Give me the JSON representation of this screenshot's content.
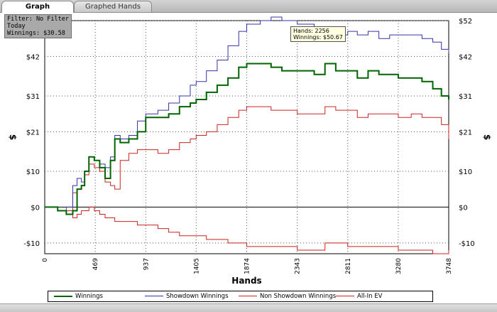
{
  "tabs": [
    {
      "label": "Graph",
      "active": true
    },
    {
      "label": "Graphed Hands",
      "active": false
    }
  ],
  "info": {
    "filter": "Filter: No Filter",
    "period": "Today",
    "winnings": "Winnings: $30.58"
  },
  "tooltip": {
    "hands": "Hands: 2256",
    "winnings": "Winnings: $50.67"
  },
  "chart_data": {
    "type": "line",
    "title": "",
    "xlabel": "Hands",
    "ylabel": "$",
    "xlim": [
      0,
      3748
    ],
    "ylim": [
      -13,
      52
    ],
    "x_ticks": [
      0,
      469,
      937,
      1405,
      1874,
      2343,
      2811,
      3280,
      3748
    ],
    "y_ticks": [
      {
        "value": -10,
        "label": "-$10"
      },
      {
        "value": 0,
        "label": "$0"
      },
      {
        "value": 10,
        "label": "$10"
      },
      {
        "value": 21,
        "label": "$21"
      },
      {
        "value": 31,
        "label": "$31"
      },
      {
        "value": 42,
        "label": "$42"
      },
      {
        "value": 52,
        "label": "$52"
      }
    ],
    "grid": true,
    "legend_position": "bottom",
    "series": [
      {
        "name": "Winnings",
        "color": "#006400",
        "points": [
          [
            0,
            0
          ],
          [
            120,
            -1
          ],
          [
            200,
            -2
          ],
          [
            260,
            -1
          ],
          [
            300,
            5
          ],
          [
            340,
            6
          ],
          [
            370,
            10
          ],
          [
            410,
            14
          ],
          [
            460,
            13
          ],
          [
            510,
            11
          ],
          [
            560,
            8
          ],
          [
            610,
            13
          ],
          [
            650,
            19
          ],
          [
            700,
            18
          ],
          [
            780,
            19
          ],
          [
            860,
            21
          ],
          [
            937,
            25
          ],
          [
            1050,
            25
          ],
          [
            1150,
            26
          ],
          [
            1250,
            28
          ],
          [
            1350,
            29
          ],
          [
            1405,
            30
          ],
          [
            1500,
            32
          ],
          [
            1600,
            34
          ],
          [
            1700,
            36
          ],
          [
            1800,
            39
          ],
          [
            1874,
            40
          ],
          [
            2000,
            40
          ],
          [
            2100,
            39
          ],
          [
            2200,
            38
          ],
          [
            2343,
            38
          ],
          [
            2500,
            37
          ],
          [
            2600,
            40
          ],
          [
            2700,
            38
          ],
          [
            2811,
            38
          ],
          [
            2900,
            36
          ],
          [
            3000,
            38
          ],
          [
            3100,
            37
          ],
          [
            3200,
            37
          ],
          [
            3280,
            36
          ],
          [
            3400,
            36
          ],
          [
            3500,
            35
          ],
          [
            3600,
            33
          ],
          [
            3680,
            31
          ],
          [
            3748,
            30
          ]
        ]
      },
      {
        "name": "Showdown Winnings",
        "color": "#3333aa",
        "points": [
          [
            0,
            0
          ],
          [
            120,
            -1
          ],
          [
            200,
            0
          ],
          [
            260,
            6
          ],
          [
            300,
            8
          ],
          [
            340,
            7
          ],
          [
            370,
            10
          ],
          [
            410,
            14
          ],
          [
            460,
            13
          ],
          [
            510,
            12
          ],
          [
            560,
            11
          ],
          [
            610,
            14
          ],
          [
            650,
            20
          ],
          [
            700,
            19
          ],
          [
            780,
            20
          ],
          [
            860,
            24
          ],
          [
            937,
            26
          ],
          [
            1050,
            27
          ],
          [
            1150,
            29
          ],
          [
            1250,
            31
          ],
          [
            1350,
            34
          ],
          [
            1405,
            35
          ],
          [
            1500,
            38
          ],
          [
            1600,
            41
          ],
          [
            1700,
            45
          ],
          [
            1800,
            49
          ],
          [
            1874,
            51
          ],
          [
            2000,
            52
          ],
          [
            2100,
            53
          ],
          [
            2200,
            52
          ],
          [
            2343,
            51
          ],
          [
            2500,
            49
          ],
          [
            2600,
            50
          ],
          [
            2700,
            48
          ],
          [
            2811,
            49
          ],
          [
            2900,
            48
          ],
          [
            3000,
            49
          ],
          [
            3100,
            47
          ],
          [
            3200,
            48
          ],
          [
            3280,
            48
          ],
          [
            3400,
            48
          ],
          [
            3500,
            47
          ],
          [
            3600,
            46
          ],
          [
            3680,
            44
          ],
          [
            3748,
            43
          ]
        ]
      },
      {
        "name": "Non Showdown Winnings",
        "color": "#cc2222",
        "points": [
          [
            0,
            0
          ],
          [
            120,
            -1
          ],
          [
            200,
            -2
          ],
          [
            260,
            -3
          ],
          [
            300,
            -2
          ],
          [
            340,
            -1
          ],
          [
            370,
            -1
          ],
          [
            410,
            0
          ],
          [
            460,
            -1
          ],
          [
            510,
            -2
          ],
          [
            560,
            -3
          ],
          [
            610,
            -3
          ],
          [
            650,
            -4
          ],
          [
            700,
            -4
          ],
          [
            780,
            -4
          ],
          [
            860,
            -5
          ],
          [
            937,
            -5
          ],
          [
            1050,
            -6
          ],
          [
            1150,
            -7
          ],
          [
            1250,
            -8
          ],
          [
            1350,
            -8
          ],
          [
            1405,
            -8
          ],
          [
            1500,
            -9
          ],
          [
            1600,
            -9
          ],
          [
            1700,
            -10
          ],
          [
            1800,
            -10
          ],
          [
            1874,
            -11
          ],
          [
            2000,
            -11
          ],
          [
            2100,
            -11
          ],
          [
            2200,
            -11
          ],
          [
            2343,
            -12
          ],
          [
            2500,
            -12
          ],
          [
            2600,
            -10
          ],
          [
            2700,
            -10
          ],
          [
            2811,
            -11
          ],
          [
            2900,
            -11
          ],
          [
            3000,
            -11
          ],
          [
            3100,
            -11
          ],
          [
            3200,
            -11
          ],
          [
            3280,
            -12
          ],
          [
            3400,
            -12
          ],
          [
            3500,
            -12
          ],
          [
            3600,
            -13
          ],
          [
            3680,
            -13
          ],
          [
            3748,
            -12
          ]
        ]
      },
      {
        "name": "All-In EV",
        "color": "#cc2222",
        "points": [
          [
            0,
            0
          ],
          [
            120,
            -1
          ],
          [
            200,
            -1
          ],
          [
            260,
            4
          ],
          [
            300,
            5
          ],
          [
            340,
            6
          ],
          [
            370,
            9
          ],
          [
            410,
            12
          ],
          [
            460,
            11
          ],
          [
            510,
            10
          ],
          [
            560,
            7
          ],
          [
            610,
            6
          ],
          [
            650,
            5
          ],
          [
            700,
            13
          ],
          [
            780,
            15
          ],
          [
            860,
            16
          ],
          [
            937,
            16
          ],
          [
            1050,
            15
          ],
          [
            1150,
            16
          ],
          [
            1250,
            18
          ],
          [
            1350,
            19
          ],
          [
            1405,
            20
          ],
          [
            1500,
            21
          ],
          [
            1600,
            23
          ],
          [
            1700,
            25
          ],
          [
            1800,
            27
          ],
          [
            1874,
            28
          ],
          [
            2000,
            28
          ],
          [
            2100,
            27
          ],
          [
            2200,
            27
          ],
          [
            2343,
            26
          ],
          [
            2500,
            26
          ],
          [
            2600,
            28
          ],
          [
            2700,
            27
          ],
          [
            2811,
            27
          ],
          [
            2900,
            25
          ],
          [
            3000,
            26
          ],
          [
            3100,
            26
          ],
          [
            3200,
            26
          ],
          [
            3280,
            25
          ],
          [
            3400,
            26
          ],
          [
            3500,
            25
          ],
          [
            3600,
            25
          ],
          [
            3680,
            23
          ],
          [
            3748,
            19
          ]
        ]
      }
    ]
  }
}
